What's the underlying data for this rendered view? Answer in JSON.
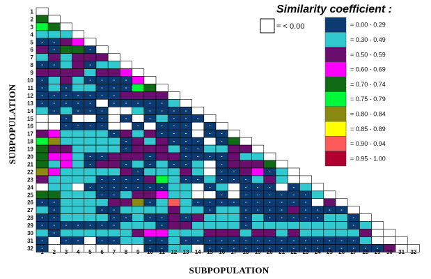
{
  "chart_data": {
    "type": "heatmap",
    "title": "",
    "xlabel": "SUBPOPULATION",
    "ylabel": "SUBPOPULATION",
    "n": 32,
    "row_labels": [
      "1",
      "2",
      "3",
      "4",
      "5",
      "6",
      "7",
      "8",
      "9",
      "10",
      "11",
      "12",
      "13",
      "14",
      "15",
      "16",
      "17",
      "18",
      "19",
      "20",
      "21",
      "22",
      "23",
      "24",
      "25",
      "26",
      "27",
      "28",
      "29",
      "30",
      "31",
      "32"
    ],
    "col_labels": [
      "1",
      "2",
      "3",
      "4",
      "5",
      "6",
      "7",
      "8",
      "9",
      "10",
      "11",
      "12",
      "13",
      "14",
      "15",
      "16",
      "17",
      "18",
      "19",
      "20",
      "21",
      "22",
      "23",
      "24",
      "25",
      "26",
      "27",
      "28",
      "29",
      "30",
      "31",
      "32"
    ],
    "legend": {
      "title": "Similarity coefficient :",
      "negative_label": "= < 0.00",
      "entries": [
        {
          "color": "#0b3b70",
          "label": "= 0.00 - 0.29"
        },
        {
          "color": "#31c8d0",
          "label": "= 0.30 - 0.49"
        },
        {
          "color": "#6a0f6e",
          "label": "= 0.50 - 0.59"
        },
        {
          "color": "#ff00ff",
          "label": "= 0.60 - 0.69"
        },
        {
          "color": "#0f6b14",
          "label": "= 0.70 - 0.74"
        },
        {
          "color": "#00f83a",
          "label": "= 0.75 - 0.79"
        },
        {
          "color": "#8a8a10",
          "label": "= 0.80 - 0.84"
        },
        {
          "color": "#ffff00",
          "label": "= 0.85 - 0.89"
        },
        {
          "color": "#ff5a5a",
          "label": "= 0.90 - 0.94"
        },
        {
          "color": "#b00030",
          "label": "= 0.95 - 1.00"
        }
      ]
    },
    "class_codes": "W = < 0.00 (white), 0 = 0.00-0.29, 1 = 0.30-0.49, 2 = 0.50-0.59, 3 = 0.60-0.69, 4 = 0.70-0.74, 5 = 0.75-0.79, 6 = 0.80-0.84, 7 = 0.85-0.89, 8 = 0.90-0.94, 9 = 0.95-1.00",
    "rows": [
      "",
      "4",
      "54",
      "111",
      "0023",
      "20440",
      "121222",
      "0012011",
      "22221223",
      "012100003",
      "0101100054",
      "00000002222",
      "00000W000001",
      "101000WW10000",
      "WW0WW0W0W01000",
      "WW0000WW0W000W0",
      "2311110212000W00",
      "56111110212000W04",
      "422111102221001122",
      "4331002220220000211",
      "41310220101001W02224",
      "63111112011121W002301",
      "211110000251001000121W",
      "W11W000000011W01W000W01",
      "4411100122311WW0W0000001",
      "00111122601810000000000W2",
      "101110011112110110000200000",
      "0011110010020211101000001100",
      "00000001110221111011111111011",
      "1011111123311122212212111112",
      "0W00W00110010000000000000001",
      "0WWWWWWWW0011W0000000000000002"
    ]
  }
}
